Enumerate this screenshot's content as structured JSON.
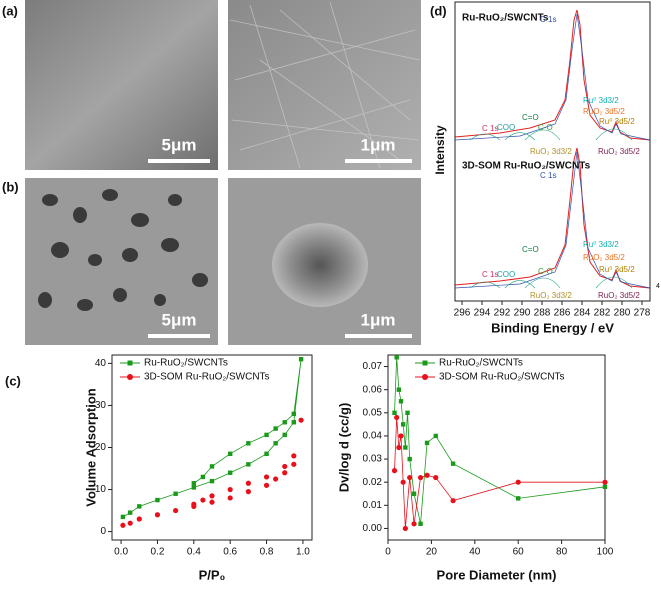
{
  "panels": {
    "labels": [
      "(a)",
      "(b)",
      "(c)",
      "(d)"
    ],
    "sem": [
      {
        "scale": "5μm"
      },
      {
        "scale": "1μm"
      },
      {
        "scale": "5μm"
      },
      {
        "scale": "1μm"
      }
    ]
  },
  "chart_data": [
    {
      "type": "line",
      "xlabel": "P/P₀",
      "ylabel": "Volume Adsorption",
      "xlim": [
        -0.05,
        1.05
      ],
      "xticks": [
        {
          "value": 0,
          "label": "0.0"
        },
        {
          "value": 0.2,
          "label": "0.2"
        },
        {
          "value": 0.4,
          "label": "0.4"
        },
        {
          "value": 0.6,
          "label": "0.6"
        },
        {
          "value": 0.8,
          "label": "0.8"
        },
        {
          "value": 1,
          "label": "1.0"
        }
      ],
      "ylim": [
        -2,
        42
      ],
      "yticks": [
        0,
        10,
        20,
        30,
        40
      ],
      "series": [
        {
          "name": "Ru-RuO₂/SWCNTs",
          "color": "#1a9a1a",
          "marker": "square",
          "line": true,
          "x": [
            0.01,
            0.05,
            0.1,
            0.2,
            0.3,
            0.4,
            0.5,
            0.6,
            0.7,
            0.8,
            0.85,
            0.9,
            0.95,
            0.99,
            0.95,
            0.9,
            0.85,
            0.8,
            0.7,
            0.6,
            0.5,
            0.45,
            0.4
          ],
          "values": [
            3.5,
            4.5,
            6,
            7.5,
            9,
            10.5,
            12,
            14,
            16,
            18.5,
            21,
            23,
            26,
            41,
            28,
            26,
            24.5,
            23,
            21,
            18.5,
            15.5,
            13,
            11.5
          ]
        },
        {
          "name": "3D-SOM Ru-RuO₂/SWCNTs",
          "color": "#e8101a",
          "marker": "circle",
          "line": false,
          "x": [
            0.01,
            0.05,
            0.1,
            0.2,
            0.3,
            0.4,
            0.5,
            0.6,
            0.7,
            0.8,
            0.85,
            0.9,
            0.95,
            0.99,
            0.95,
            0.9,
            0.8,
            0.7,
            0.6,
            0.5,
            0.45,
            0.4
          ],
          "values": [
            1.5,
            2,
            3,
            4,
            5,
            6,
            7,
            8,
            9.5,
            11,
            12.5,
            14,
            16,
            26.5,
            18,
            15.5,
            13,
            11.5,
            10,
            8.5,
            7.5,
            6.5
          ]
        }
      ]
    },
    {
      "type": "line",
      "xlabel": "Pore Diameter (nm)",
      "ylabel": "Dv/log d (cc/g)",
      "xlim": [
        0,
        100
      ],
      "xticks": [
        0,
        20,
        40,
        60,
        80,
        100
      ],
      "ylim": [
        -0.005,
        0.075
      ],
      "yticks": [
        {
          "value": 0,
          "label": "0.00"
        },
        {
          "value": 0.01,
          "label": "0.01"
        },
        {
          "value": 0.02,
          "label": "0.02"
        },
        {
          "value": 0.03,
          "label": "0.03"
        },
        {
          "value": 0.04,
          "label": "0.04"
        },
        {
          "value": 0.05,
          "label": "0.05"
        },
        {
          "value": 0.06,
          "label": "0.06"
        },
        {
          "value": 0.07,
          "label": "0.07"
        }
      ],
      "series": [
        {
          "name": "Ru-RuO₂/SWCNTs",
          "color": "#1a9a1a",
          "marker": "square",
          "line": true,
          "x": [
            3,
            4,
            5,
            6,
            7,
            8,
            9,
            10,
            12,
            15,
            18,
            22,
            30,
            60,
            100
          ],
          "values": [
            0.05,
            0.074,
            0.06,
            0.055,
            0.045,
            0.035,
            0.05,
            0.03,
            0.015,
            0.002,
            0.037,
            0.04,
            0.028,
            0.013,
            0.018
          ]
        },
        {
          "name": "3D-SOM Ru-RuO₂/SWCNTs",
          "color": "#e8101a",
          "marker": "circle",
          "line": true,
          "x": [
            3,
            4,
            5,
            6,
            7,
            8,
            10,
            12,
            15,
            18,
            22,
            30,
            60,
            100
          ],
          "values": [
            0.025,
            0.048,
            0.035,
            0.04,
            0.02,
            0,
            0.022,
            0.002,
            0.022,
            0.023,
            0.022,
            0.012,
            0.02,
            0.02
          ]
        }
      ]
    },
    {
      "type": "spectrum",
      "xlabel": "Binding Energy / eV",
      "ylabel": "Intensity",
      "side_label": "4",
      "xlim": [
        296.7,
        277.2
      ],
      "xticks": [
        296,
        294,
        292,
        290,
        288,
        286,
        284,
        282,
        280,
        278
      ],
      "spectra": [
        {
          "name": "Ru-RuO₂/SWCNTs",
          "annotations": [
            {
              "text": "C 1s",
              "color": "#3050b0"
            },
            {
              "text": "Ru⁰ 3d3/2",
              "color": "#10b0b0"
            },
            {
              "text": "RuO₂ 3d5/2",
              "color": "#f07020"
            },
            {
              "text": "Ru⁰ 3d5/2",
              "color": "#b08000"
            },
            {
              "text": "C=O",
              "color": "#108040"
            },
            {
              "text": "COO",
              "color": "#20a0a0"
            },
            {
              "text": "C-O",
              "color": "#30a030"
            },
            {
              "text": "C 1s",
              "color": "#d03060"
            },
            {
              "text": "RuO₂ 3d3/2",
              "color": "#b09020"
            },
            {
              "text": "RuO₂ 3d5/2",
              "color": "#802050"
            }
          ]
        },
        {
          "name": "3D-SOM Ru-RuO₂/SWCNTs",
          "annotations": [
            {
              "text": "C 1s",
              "color": "#3050b0"
            },
            {
              "text": "Ru⁰ 3d3/2",
              "color": "#10b0b0"
            },
            {
              "text": "RuO₂ 3d5/2",
              "color": "#f07020"
            },
            {
              "text": "Ru⁰ 3d5/2",
              "color": "#b08000"
            },
            {
              "text": "C=O",
              "color": "#108040"
            },
            {
              "text": "COO",
              "color": "#20a0a0"
            },
            {
              "text": "C-O",
              "color": "#30a030"
            },
            {
              "text": "C 1s",
              "color": "#d03060"
            },
            {
              "text": "RuO₂ 3d3/2",
              "color": "#b09020"
            },
            {
              "text": "RuO₂ 3d5/2",
              "color": "#802050"
            }
          ]
        }
      ]
    }
  ]
}
